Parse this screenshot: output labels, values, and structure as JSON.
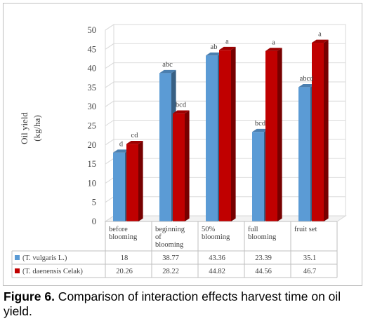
{
  "chart_data": {
    "type": "bar",
    "title": "",
    "xlabel": "",
    "ylabel": "Oil yield",
    "ylabel_unit": "(kg/ha)",
    "ylim": [
      0,
      50
    ],
    "ytick_step": 5,
    "grid": true,
    "legend": "in data table, left",
    "categories": [
      [
        "before",
        "blooming"
      ],
      [
        "beginning",
        "of",
        "blooming"
      ],
      [
        "50%",
        "blooming"
      ],
      [
        "full",
        "blooming"
      ],
      [
        "fruit set"
      ]
    ],
    "series": [
      {
        "name": "(T. vulgaris  L.)",
        "color": "#5b9bd5",
        "values": [
          18,
          38.77,
          43.36,
          23.39,
          35.1
        ],
        "value_labels": [
          "18",
          "38.77",
          "43.36",
          "23.39",
          "35.1"
        ],
        "letters": [
          "d",
          "abc",
          "ab",
          "bcd",
          "abcd"
        ]
      },
      {
        "name": "(T. daenensis  Celak)",
        "color": "#c00000",
        "values": [
          20.26,
          28.22,
          44.82,
          44.56,
          46.7
        ],
        "value_labels": [
          "20.26",
          "28.22",
          "44.82",
          "44.56",
          "46.7"
        ],
        "letters": [
          "cd",
          "bcd",
          "a",
          "a",
          "a"
        ]
      }
    ]
  },
  "caption": {
    "label": "Figure 6.",
    "text": " Comparison of interaction effects harvest time on oil yield."
  }
}
